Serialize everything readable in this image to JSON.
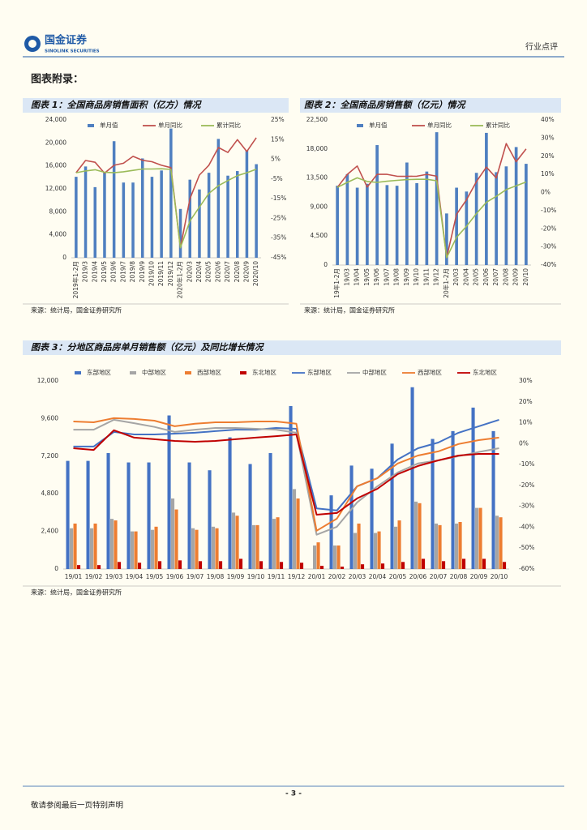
{
  "header": {
    "logo_cn": "国金证券",
    "logo_en": "SINOLINK SECURITIES",
    "report_type": "行业点评"
  },
  "appendix_title": "图表附录：",
  "chart_data": [
    {
      "type": "combo",
      "title": "图表 1：全国商品房销售面积（亿方）情况",
      "source": "来源：统计局，国金证券研究所",
      "categories": [
        "2019年1-2月",
        "2019/3",
        "2019/4",
        "2019/5",
        "2019/6",
        "2019/7",
        "2019/8",
        "2019/9",
        "2019/10",
        "2019/11",
        "2019/12",
        "2020年1-2月",
        "2020/3",
        "2020/4",
        "2020/5",
        "2020/6",
        "2020/7",
        "2020/8",
        "2020/9",
        "2020/10"
      ],
      "series": [
        {
          "name": "单月值",
          "kind": "bar",
          "color": "#4f7fc0",
          "values": [
            14100,
            15900,
            12300,
            14900,
            20300,
            13100,
            13100,
            17300,
            14100,
            15200,
            22500,
            8500,
            13600,
            11900,
            14800,
            20700,
            14300,
            15100,
            18700,
            16300
          ]
        },
        {
          "name": "单月同比",
          "kind": "line",
          "axis": "y2",
          "color": "#c0504d",
          "values": [
            -1.8,
            4.4,
            3.5,
            -2.0,
            2.0,
            3.0,
            6.5,
            4.5,
            3.8,
            2.0,
            0.8,
            -39.9,
            -15.0,
            -3.0,
            2.0,
            11.0,
            8.5,
            15.0,
            9.0,
            16.0
          ]
        },
        {
          "name": "累计同比",
          "kind": "line",
          "axis": "y2",
          "color": "#9bbb59",
          "values": [
            -1.8,
            -0.9,
            -0.3,
            -1.6,
            -1.8,
            -1.3,
            -0.6,
            0.1,
            0.1,
            0.2,
            -0.1,
            -39.9,
            -26.3,
            -19.3,
            -12.3,
            -8.4,
            -5.8,
            -3.3,
            -1.8,
            0.0
          ]
        }
      ],
      "ylim": [
        0,
        24000
      ],
      "yticks": [
        0,
        {
          "value": 4000,
          "label": "4,000"
        },
        {
          "value": 8000,
          "label": "8,000"
        },
        {
          "value": 12000,
          "label": "12,000"
        },
        {
          "value": 16000,
          "label": "16,000"
        },
        {
          "value": 20000,
          "label": "20,000"
        },
        {
          "value": 24000,
          "label": "24,000"
        }
      ],
      "y2lim": [
        -45,
        25
      ],
      "y2ticks": [
        {
          "value": -45,
          "label": "-45%"
        },
        {
          "value": -35,
          "label": "-35%"
        },
        {
          "value": -25,
          "label": "-25%"
        },
        {
          "value": -15,
          "label": "-15%"
        },
        {
          "value": -5,
          "label": "-5%"
        },
        {
          "value": 5,
          "label": "5%"
        },
        {
          "value": 15,
          "label": "15%"
        },
        {
          "value": 25,
          "label": "25%"
        }
      ],
      "grid": false,
      "legend": "top"
    },
    {
      "type": "combo",
      "title": "图表 2：全国商品房销售额（亿元）情况",
      "source": "来源：统计局，国金证券研究所",
      "categories": [
        "19年1-2月",
        "19/03",
        "19/04",
        "19/05",
        "19/06",
        "19/07",
        "19/08",
        "19/09",
        "19/10",
        "19/11",
        "19/12",
        "20年1-2月",
        "20/03",
        "20/04",
        "20/05",
        "20/06",
        "20/07",
        "20/08",
        "20/09",
        "20/10"
      ],
      "series": [
        {
          "name": "单月值",
          "kind": "bar",
          "color": "#4f7fc0",
          "values": [
            12300,
            14100,
            12000,
            12600,
            18600,
            12400,
            12300,
            15900,
            12700,
            14500,
            20600,
            8000,
            12000,
            11400,
            14300,
            20500,
            14400,
            15300,
            18300,
            15700
          ]
        },
        {
          "name": "单月同比",
          "kind": "line",
          "axis": "y2",
          "color": "#c0504d",
          "values": [
            2.8,
            10.0,
            14.6,
            3.0,
            10.0,
            10.0,
            9.0,
            8.9,
            9.0,
            10.0,
            9.0,
            -35.9,
            -12.0,
            -4.0,
            6.0,
            14.0,
            8.0,
            27.0,
            17.0,
            24.0
          ]
        },
        {
          "name": "累计同比",
          "kind": "line",
          "axis": "y2",
          "color": "#9bbb59",
          "values": [
            2.8,
            5.6,
            8.1,
            6.1,
            5.6,
            6.2,
            6.7,
            7.1,
            7.3,
            7.3,
            6.5,
            -35.9,
            -24.7,
            -18.6,
            -11.6,
            -5.4,
            -2.1,
            1.6,
            3.7,
            5.8
          ]
        }
      ],
      "ylim": [
        0,
        22500
      ],
      "yticks": [
        0,
        {
          "value": 4500,
          "label": "4,500"
        },
        {
          "value": 9000,
          "label": "9,000"
        },
        {
          "value": 13500,
          "label": "13,500"
        },
        {
          "value": 18000,
          "label": "18,000"
        },
        {
          "value": 22500,
          "label": "22,500"
        }
      ],
      "y2lim": [
        -40,
        40
      ],
      "y2ticks": [
        {
          "value": -40,
          "label": "-40%"
        },
        {
          "value": -30,
          "label": "-30%"
        },
        {
          "value": -20,
          "label": "-20%"
        },
        {
          "value": -10,
          "label": "-10%"
        },
        {
          "value": 0,
          "label": "0%"
        },
        {
          "value": 10,
          "label": "10%"
        },
        {
          "value": 20,
          "label": "20%"
        },
        {
          "value": 30,
          "label": "30%"
        },
        {
          "value": 40,
          "label": "40%"
        }
      ],
      "grid": false,
      "legend": "top"
    },
    {
      "type": "combo",
      "title": "图表 3：分地区商品房单月销售额（亿元）及同比增长情况",
      "source": "来源：统计局，国金证券研究所",
      "categories": [
        "19/01",
        "19/02",
        "19/03",
        "19/04",
        "19/05",
        "19/06",
        "19/07",
        "19/08",
        "19/09",
        "19/10",
        "19/11",
        "19/12",
        "20/01",
        "20/02",
        "20/03",
        "20/04",
        "20/05",
        "20/06",
        "20/07",
        "20/08",
        "20/09",
        "20/10"
      ],
      "series": [
        {
          "name": "东部地区",
          "kind": "bar",
          "color": "#4472c4",
          "values": [
            6900,
            6900,
            7400,
            6800,
            6800,
            9800,
            6800,
            6300,
            8400,
            6700,
            7400,
            10400,
            null,
            4700,
            6600,
            6400,
            8000,
            11600,
            8300,
            8800,
            10300,
            8800
          ]
        },
        {
          "name": "中部地区",
          "kind": "bar",
          "color": "#a5a5a5",
          "values": [
            2600,
            2600,
            3200,
            2400,
            2500,
            4500,
            2600,
            2700,
            3600,
            2800,
            3200,
            5100,
            1500,
            1500,
            2300,
            2300,
            2700,
            4300,
            2900,
            2900,
            3900,
            3400
          ]
        },
        {
          "name": "西部地区",
          "kind": "bar",
          "color": "#ed7d31",
          "values": [
            2900,
            2900,
            3100,
            2400,
            2700,
            3800,
            2500,
            2600,
            3400,
            2800,
            3300,
            4500,
            1700,
            1500,
            2900,
            2400,
            3100,
            4200,
            2800,
            3000,
            3900,
            3300
          ]
        },
        {
          "name": "东北地区",
          "kind": "bar",
          "color": "#c00000",
          "values": [
            250,
            250,
            450,
            400,
            500,
            550,
            500,
            500,
            650,
            500,
            450,
            400,
            200,
            150,
            300,
            350,
            450,
            650,
            500,
            650,
            650,
            450
          ]
        },
        {
          "name": "东部地区",
          "kind": "line",
          "axis": "y2",
          "color": "#4472c4",
          "values": [
            -1.4,
            -1.4,
            5.6,
            4.4,
            4.4,
            4.8,
            5.2,
            6.0,
            6.7,
            6.7,
            7.5,
            7.1,
            -31.0,
            -32.0,
            -20.4,
            -16.5,
            -7.6,
            -2.2,
            0.5,
            5.2,
            8.3,
            11.4
          ]
        },
        {
          "name": "中部地区",
          "kind": "line",
          "axis": "y2",
          "color": "#a5a5a5",
          "values": [
            6.7,
            6.7,
            11.4,
            9.8,
            8.0,
            5.6,
            6.7,
            7.5,
            7.5,
            7.1,
            6.7,
            5.2,
            -43.6,
            -39.8,
            -28.1,
            -20.4,
            -13.8,
            -9.5,
            -8.0,
            -6.0,
            -4.0,
            -2.2
          ]
        },
        {
          "name": "西部地区",
          "kind": "line",
          "axis": "y2",
          "color": "#ed7d31",
          "values": [
            10.6,
            10.2,
            12.2,
            11.8,
            11.0,
            8.3,
            9.5,
            10.2,
            10.2,
            10.6,
            10.6,
            9.5,
            -41.7,
            -35.9,
            -20.4,
            -16.5,
            -9.5,
            -5.7,
            -3.7,
            -0.2,
            1.7,
            2.9
          ]
        },
        {
          "name": "东北地区",
          "kind": "line",
          "axis": "y2",
          "color": "#c00000",
          "values": [
            -2.2,
            -3.0,
            6.4,
            2.9,
            2.1,
            1.3,
            0.9,
            1.3,
            2.1,
            2.9,
            3.6,
            4.4,
            -34.0,
            -33.2,
            -26.2,
            -21.6,
            -14.6,
            -10.7,
            -8.0,
            -5.7,
            -4.9,
            -4.9
          ]
        }
      ],
      "ylim": [
        0,
        12000
      ],
      "yticks": [
        0,
        {
          "value": 2400,
          "label": "2,400"
        },
        {
          "value": 4800,
          "label": "4,800"
        },
        {
          "value": 7200,
          "label": "7,200"
        },
        {
          "value": 9600,
          "label": "9,600"
        },
        {
          "value": 12000,
          "label": "12,000"
        }
      ],
      "y2lim": [
        -60,
        30
      ],
      "y2ticks": [
        {
          "value": -60,
          "label": "-60%"
        },
        {
          "value": -50,
          "label": "-50%"
        },
        {
          "value": -40,
          "label": "-40%"
        },
        {
          "value": -30,
          "label": "-30%"
        },
        {
          "value": -20,
          "label": "-20%"
        },
        {
          "value": -10,
          "label": "-10%"
        },
        {
          "value": 0,
          "label": "0%"
        },
        {
          "value": 10,
          "label": "10%"
        },
        {
          "value": 20,
          "label": "20%"
        },
        {
          "value": 30,
          "label": "30%"
        }
      ],
      "grid": false,
      "legend": "top"
    }
  ],
  "footer": {
    "page": "- 3 -",
    "disclaimer": "敬请参阅最后一页特别声明"
  }
}
